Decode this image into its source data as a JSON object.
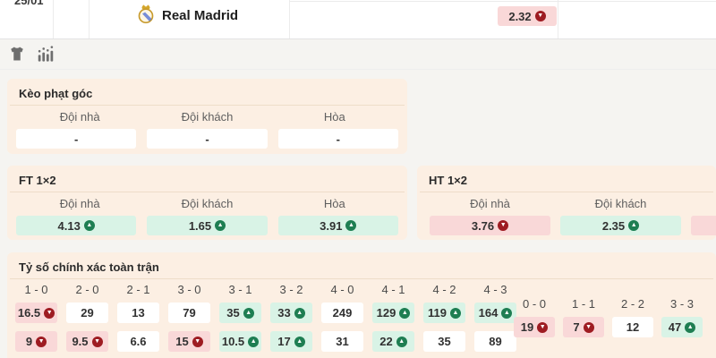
{
  "match_row": {
    "date": "25/01",
    "team": "Real Madrid",
    "odd": {
      "value": "2.32",
      "trend": "down"
    }
  },
  "toolbar": {
    "icons": [
      "jersey-icon",
      "stats-icon"
    ]
  },
  "sections": {
    "corner": {
      "title": "Kèo phạt góc",
      "headers": [
        "Đội nhà",
        "Đội khách",
        "Hòa"
      ],
      "cells": [
        {
          "value": "-",
          "trend": "none"
        },
        {
          "value": "-",
          "trend": "none"
        },
        {
          "value": "-",
          "trend": "none"
        }
      ]
    },
    "ft": {
      "title": "FT 1×2",
      "headers": [
        "Đội nhà",
        "Đội khách",
        "Hòa"
      ],
      "cells": [
        {
          "value": "4.13",
          "trend": "up"
        },
        {
          "value": "1.65",
          "trend": "up"
        },
        {
          "value": "3.91",
          "trend": "up"
        }
      ]
    },
    "ht": {
      "title": "HT 1×2",
      "headers": [
        "Đội nhà",
        "Đội khách"
      ],
      "cells": [
        {
          "value": "3.76",
          "trend": "down"
        },
        {
          "value": "2.35",
          "trend": "up"
        },
        {
          "value": "",
          "trend": "down"
        }
      ]
    },
    "correct_score": {
      "title": "Tỷ số chính xác toàn trận",
      "columns": [
        "1 - 0",
        "2 - 0",
        "2 - 1",
        "3 - 0",
        "3 - 1",
        "3 - 2",
        "4 - 0",
        "4 - 1",
        "4 - 2",
        "4 - 3"
      ],
      "row1": [
        {
          "value": "16.5",
          "trend": "down"
        },
        {
          "value": "29",
          "trend": "none"
        },
        {
          "value": "13",
          "trend": "none"
        },
        {
          "value": "79",
          "trend": "none"
        },
        {
          "value": "35",
          "trend": "up"
        },
        {
          "value": "33",
          "trend": "up"
        },
        {
          "value": "249",
          "trend": "none"
        },
        {
          "value": "129",
          "trend": "up"
        },
        {
          "value": "119",
          "trend": "up"
        },
        {
          "value": "164",
          "trend": "up"
        }
      ],
      "row2": [
        {
          "value": "9",
          "trend": "down"
        },
        {
          "value": "9.5",
          "trend": "down"
        },
        {
          "value": "6.6",
          "trend": "none"
        },
        {
          "value": "15",
          "trend": "down"
        },
        {
          "value": "10.5",
          "trend": "up"
        },
        {
          "value": "17",
          "trend": "up"
        },
        {
          "value": "31",
          "trend": "none"
        },
        {
          "value": "22",
          "trend": "up"
        },
        {
          "value": "35",
          "trend": "none"
        },
        {
          "value": "89",
          "trend": "none"
        }
      ],
      "draw_columns": [
        "0 - 0",
        "1 - 1",
        "2 - 2",
        "3 - 3"
      ],
      "draw_values": [
        {
          "value": "19",
          "trend": "down"
        },
        {
          "value": "7",
          "trend": "down"
        },
        {
          "value": "12",
          "trend": "none"
        },
        {
          "value": "47",
          "trend": "up"
        }
      ]
    }
  },
  "colors": {
    "page_bg": "#f5f4f1",
    "section_bg": "#fcefe3",
    "up_cell_bg": "#d9f3e6",
    "down_cell_bg": "#f9d8d8",
    "up_icon": "#1e7e52",
    "down_icon": "#9e1c22"
  }
}
